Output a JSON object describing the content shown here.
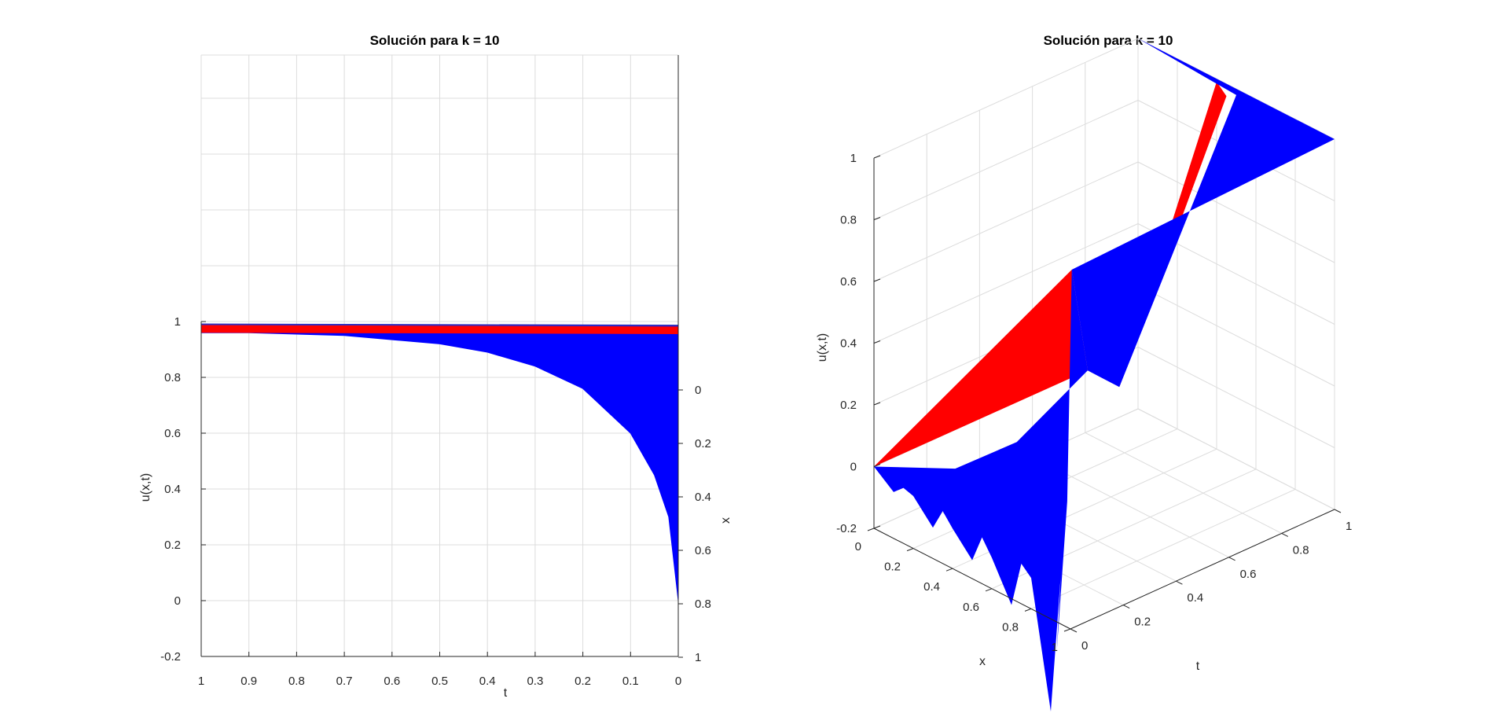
{
  "colors": {
    "surface_blue": "#0000ff",
    "surface_red": "#ff0000",
    "grid": "#dcdcdc",
    "axis": "#262626"
  },
  "chart_data": [
    {
      "type": "surface",
      "view": "2D side view (t-u plane, x axis on right)",
      "title": "Solución para k = 10",
      "xlabel": "t",
      "ylabel": "u(x,t)",
      "zlabel": "x",
      "xlim": [
        1,
        0
      ],
      "ylim": [
        -0.2,
        1
      ],
      "zlim": [
        0,
        1
      ],
      "x_ticks": [
        "1",
        "0.9",
        "0.8",
        "0.7",
        "0.6",
        "0.5",
        "0.4",
        "0.3",
        "0.2",
        "0.1",
        "0"
      ],
      "y_ticks": [
        "-0.2",
        "0",
        "0.2",
        "0.4",
        "0.6",
        "0.8",
        "1"
      ],
      "z_ticks": [
        "0",
        "0.2",
        "0.4",
        "0.6",
        "0.8",
        "1"
      ],
      "grid": true,
      "lower_envelope": {
        "t": [
          1.0,
          0.9,
          0.8,
          0.7,
          0.6,
          0.5,
          0.4,
          0.3,
          0.2,
          0.1,
          0.05,
          0.02,
          0.0
        ],
        "u": [
          0.96,
          0.96,
          0.955,
          0.95,
          0.935,
          0.92,
          0.89,
          0.84,
          0.76,
          0.6,
          0.45,
          0.3,
          0.0
        ]
      },
      "red_band": {
        "u_top": 0.99,
        "u_bottom": 0.96
      }
    },
    {
      "type": "surface",
      "view": "3D",
      "title": "Solución para k = 10",
      "xlabel": "x",
      "ylabel": "t",
      "zlabel": "u(x,t)",
      "xlim": [
        0,
        1
      ],
      "ylim": [
        0,
        1
      ],
      "zlim": [
        -0.2,
        1
      ],
      "x_ticks": [
        "0",
        "0.2",
        "0.4",
        "0.6",
        "0.8",
        "1"
      ],
      "y_ticks": [
        "0",
        "0.2",
        "0.4",
        "0.6",
        "0.8",
        "1"
      ],
      "z_ticks": [
        "-0.2",
        "0",
        "0.2",
        "0.4",
        "0.6",
        "0.8",
        "1"
      ],
      "grid": true,
      "surface_edges": {
        "t0_edge_x": [
          0.0,
          0.1,
          0.15,
          0.2,
          0.3,
          0.35,
          0.4,
          0.5,
          0.55,
          0.6,
          0.7,
          0.75,
          0.8,
          0.9,
          0.95,
          1.0
        ],
        "t0_edge_u": [
          0.0,
          -0.05,
          -0.02,
          -0.03,
          -0.1,
          -0.03,
          -0.07,
          -0.14,
          -0.05,
          -0.1,
          -0.22,
          -0.07,
          -0.1,
          -0.5,
          -0.05,
          0.95
        ],
        "t_axis_edge_t": [
          0,
          1
        ],
        "t_axis_edge_u": [
          0,
          1
        ],
        "far_edge_x1_u": [
          1,
          1
        ]
      }
    }
  ]
}
